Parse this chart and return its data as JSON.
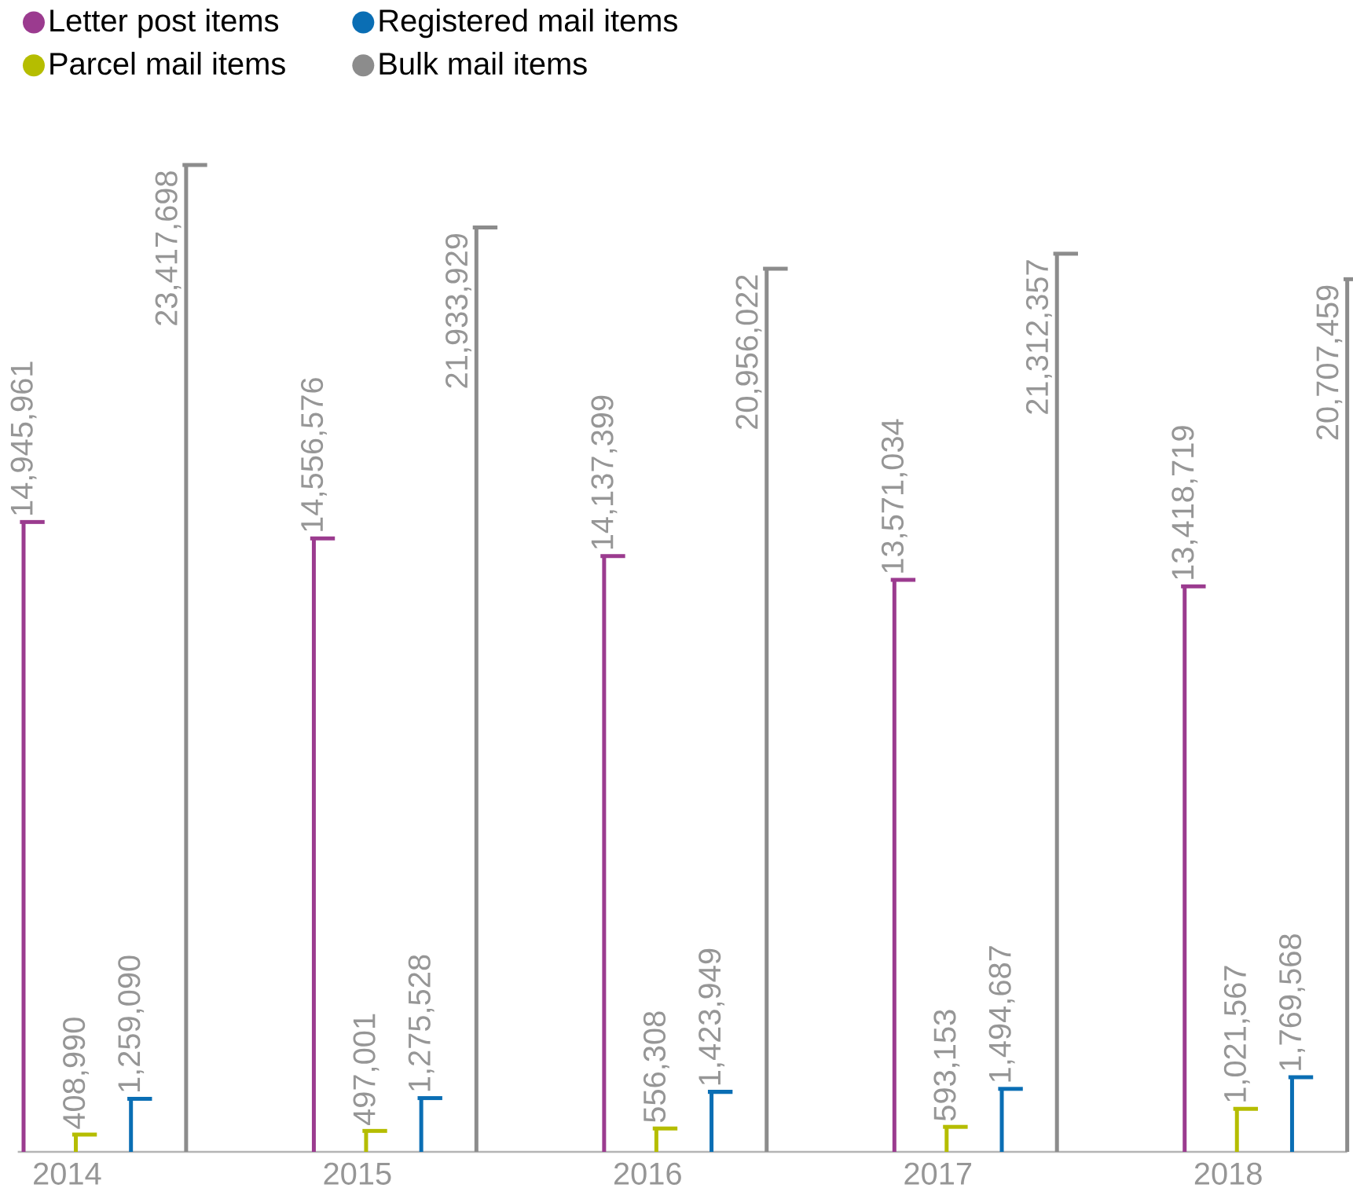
{
  "chart_data": {
    "type": "bar",
    "categories": [
      "2014",
      "2015",
      "2016",
      "2017",
      "2018"
    ],
    "series": [
      {
        "name": "Letter post items",
        "color": "#9b3b8f",
        "values": [
          14945961,
          14556576,
          14137399,
          13571034,
          13418719
        ],
        "value_labels": [
          "14,945,961",
          "14,556,576",
          "14,137,399",
          "13,571,034",
          "13,418,719"
        ]
      },
      {
        "name": "Parcel mail items",
        "color": "#b5bd00",
        "values": [
          408990,
          497001,
          556308,
          593153,
          1021567
        ],
        "value_labels": [
          "408,990",
          "497,001",
          "556,308",
          "593,153",
          "1,021,567"
        ]
      },
      {
        "name": "Registered mail items",
        "color": "#0a6eb4",
        "values": [
          1259090,
          1275528,
          1423949,
          1494687,
          1769568
        ],
        "value_labels": [
          "1,259,090",
          "1,275,528",
          "1,423,949",
          "1,494,687",
          "1,769,568"
        ]
      },
      {
        "name": "Bulk mail items",
        "color": "#8c8c8c",
        "values": [
          23417698,
          21933929,
          20956022,
          21312357,
          20707459
        ],
        "value_labels": [
          "23,417,698",
          "21,933,929",
          "20,956,022",
          "21,312,357",
          "20,707,459"
        ]
      }
    ],
    "legend": "top left"
  }
}
